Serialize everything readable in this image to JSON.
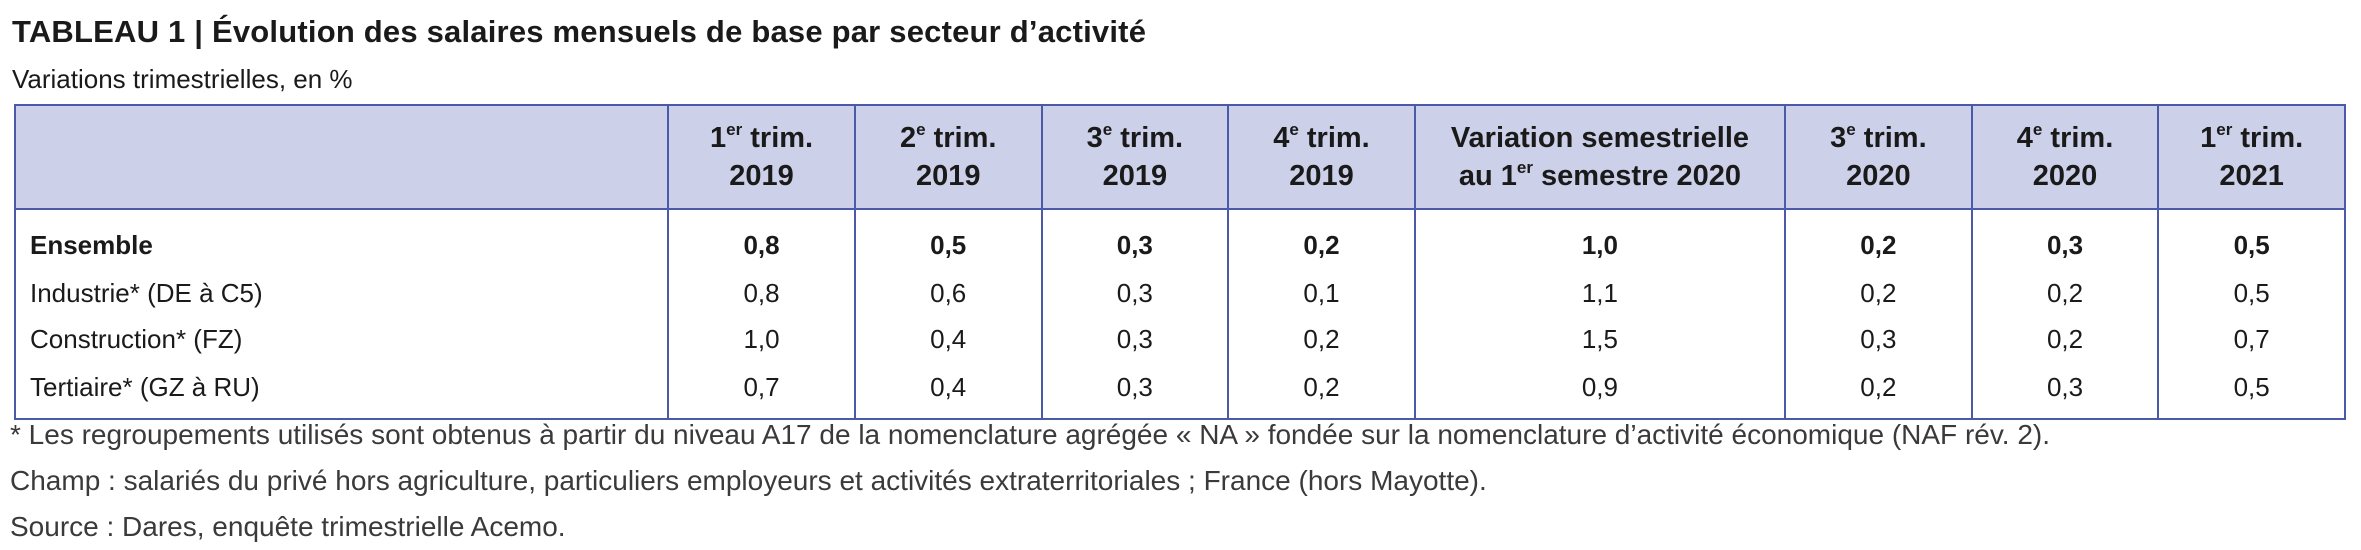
{
  "title": "TABLEAU 1 | Évolution des salaires mensuels de base par secteur d’activité",
  "subtitle": "Variations trimestrielles, en %",
  "columns": [
    {
      "sup_pre": "1",
      "sup": "er",
      "line1_post": " trim.",
      "line2": "2019"
    },
    {
      "sup_pre": "2",
      "sup": "e",
      "line1_post": " trim.",
      "line2": "2019"
    },
    {
      "sup_pre": "3",
      "sup": "e",
      "line1_post": " trim.",
      "line2": "2019"
    },
    {
      "sup_pre": "4",
      "sup": "e",
      "line1_post": " trim.",
      "line2": "2019"
    },
    {
      "line1": "Variation semestrielle",
      "line2_pre": "au 1",
      "line2_sup": "er",
      "line2_post": " semestre 2020"
    },
    {
      "sup_pre": "3",
      "sup": "e",
      "line1_post": " trim.",
      "line2": "2020"
    },
    {
      "sup_pre": "4",
      "sup": "e",
      "line1_post": " trim.",
      "line2": "2020"
    },
    {
      "sup_pre": "1",
      "sup": "er",
      "line1_post": " trim.",
      "line2": "2021"
    }
  ],
  "rows": [
    {
      "label": "Ensemble",
      "values": [
        "0,8",
        "0,5",
        "0,3",
        "0,2",
        "1,0",
        "0,2",
        "0,3",
        "0,5"
      ]
    },
    {
      "label": "Industrie* (DE à C5)",
      "values": [
        "0,8",
        "0,6",
        "0,3",
        "0,1",
        "1,1",
        "0,2",
        "0,2",
        "0,5"
      ]
    },
    {
      "label": "Construction* (FZ)",
      "values": [
        "1,0",
        "0,4",
        "0,3",
        "0,2",
        "1,5",
        "0,3",
        "0,2",
        "0,7"
      ]
    },
    {
      "label": "Tertiaire* (GZ à RU)",
      "values": [
        "0,7",
        "0,4",
        "0,3",
        "0,2",
        "0,9",
        "0,2",
        "0,3",
        "0,5"
      ]
    }
  ],
  "notes": {
    "footnote": "* Les regroupements utilisés sont obtenus à partir du niveau A17 de la nomenclature agrégée « NA » fondée sur la nomenclature d’activité économique (NAF rév. 2).",
    "champ": "Champ : salariés du privé hors agriculture, particuliers employeurs et activités extraterritoriales ; France (hors Mayotte).",
    "source": "Source : Dares, enquête trimestrielle Acemo."
  },
  "colors": {
    "header_bg": "#ccd0e8",
    "border": "#4a5aa8"
  }
}
